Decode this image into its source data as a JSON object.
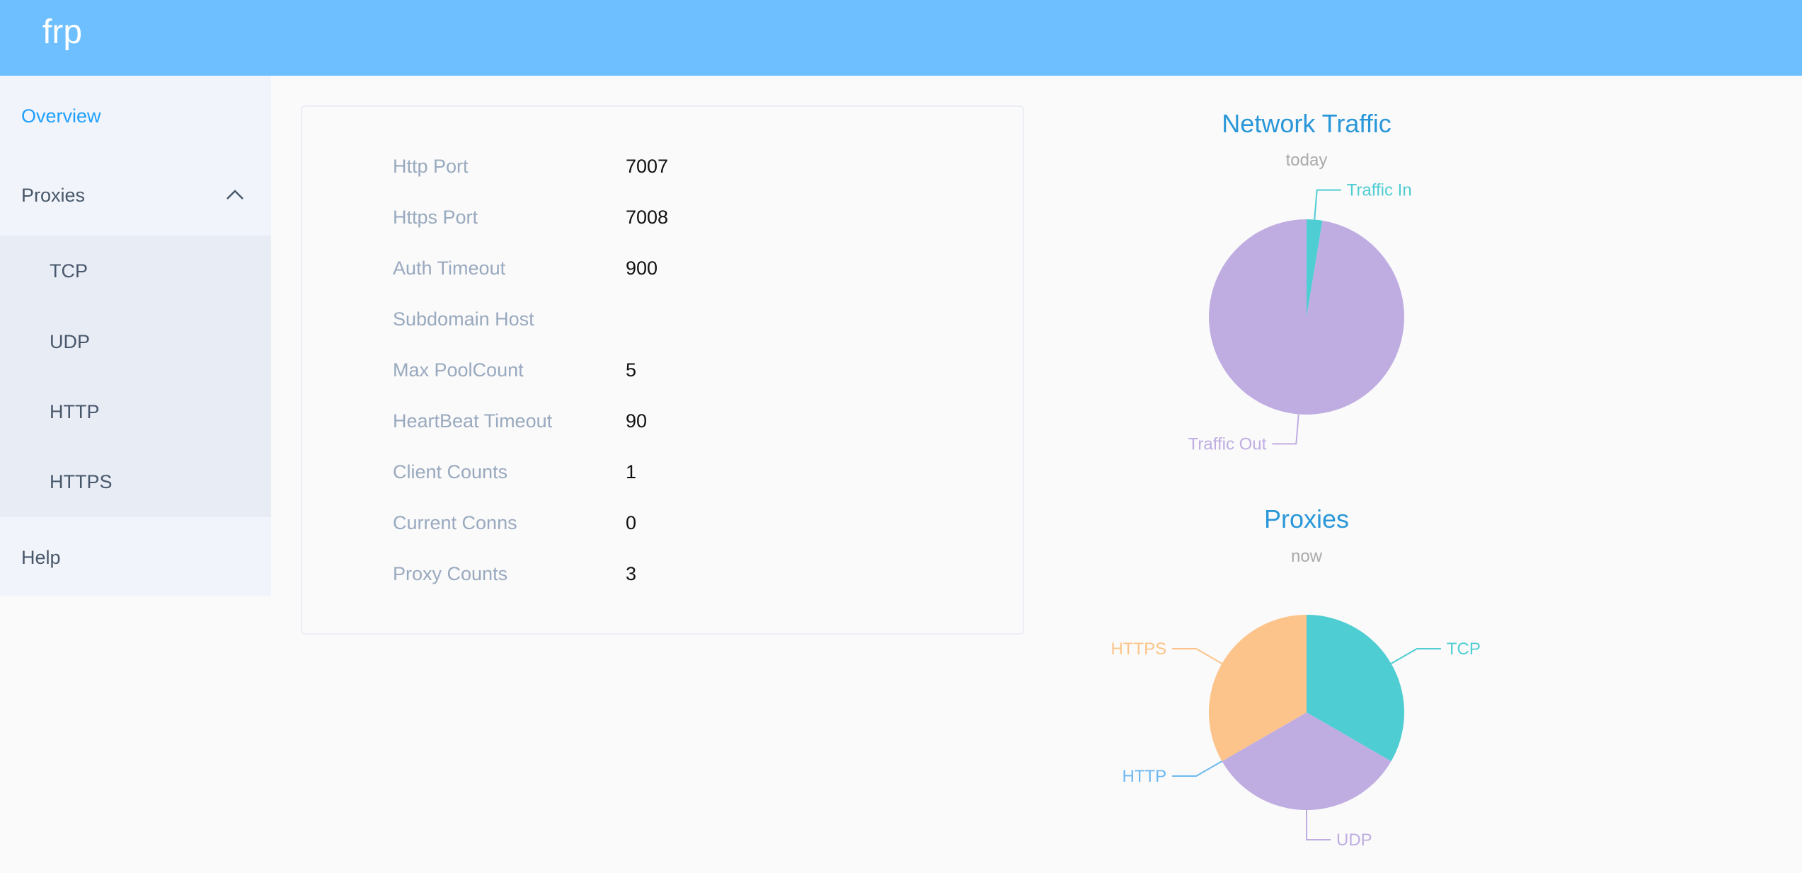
{
  "header": {
    "logo": "frp",
    "color": "#6dbfff"
  },
  "sidebar": {
    "items": [
      {
        "label": "Overview",
        "active": true
      },
      {
        "label": "Proxies",
        "expanded": true,
        "icon": "chevron-up-icon",
        "children": [
          {
            "label": "TCP"
          },
          {
            "label": "UDP"
          },
          {
            "label": "HTTP"
          },
          {
            "label": "HTTPS"
          }
        ]
      },
      {
        "label": "Help"
      }
    ]
  },
  "overview": {
    "rows": [
      {
        "label": "Http Port",
        "value": "7007"
      },
      {
        "label": "Https Port",
        "value": "7008"
      },
      {
        "label": "Auth Timeout",
        "value": "900"
      },
      {
        "label": "Subdomain Host",
        "value": ""
      },
      {
        "label": "Max PoolCount",
        "value": "5"
      },
      {
        "label": "HeartBeat Timeout",
        "value": "90"
      },
      {
        "label": "Client Counts",
        "value": "1"
      },
      {
        "label": "Current Conns",
        "value": "0"
      },
      {
        "label": "Proxy Counts",
        "value": "3"
      }
    ]
  },
  "chart_data": [
    {
      "type": "pie",
      "title": "Network Traffic",
      "subtitle": "today",
      "categories": [
        "Traffic In",
        "Traffic Out"
      ],
      "values": [
        2.6,
        97.4
      ],
      "colors": [
        "#4ecdd2",
        "#bfade2"
      ]
    },
    {
      "type": "pie",
      "title": "Proxies",
      "subtitle": "now",
      "categories": [
        "TCP",
        "UDP",
        "HTTP",
        "HTTPS"
      ],
      "values": [
        1,
        1,
        0,
        1
      ],
      "colors": [
        "#4ecdd2",
        "#bfade2",
        "#6cb8f0",
        "#fcc48a"
      ]
    }
  ],
  "colors": {
    "title": "#2a97d8",
    "subtitle": "#aaaaaa",
    "label": "#99a9bf",
    "active": "#20a0ff"
  }
}
